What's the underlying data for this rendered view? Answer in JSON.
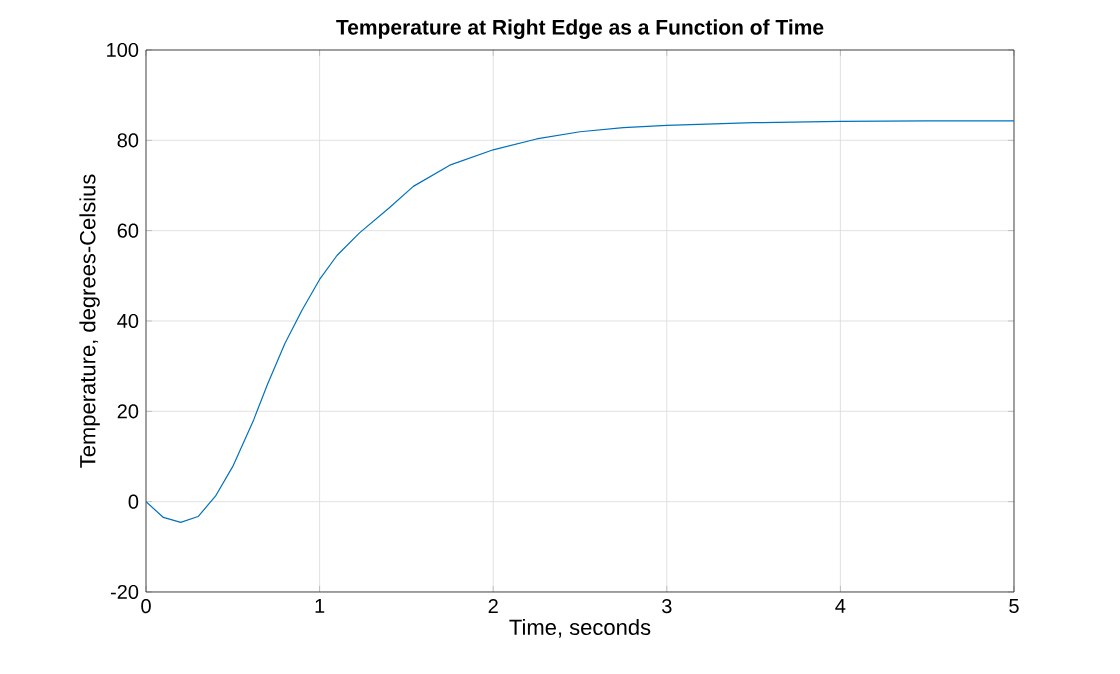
{
  "chart_data": {
    "type": "line",
    "title": "Temperature at Right Edge as a Function of Time",
    "xlabel": "Time, seconds",
    "ylabel": "Temperature, degrees-Celsius",
    "xlim": [
      0,
      5
    ],
    "ylim": [
      -20,
      100
    ],
    "xticks": [
      0,
      1,
      2,
      3,
      4,
      5
    ],
    "yticks": [
      -20,
      0,
      20,
      40,
      60,
      80,
      100
    ],
    "grid": true,
    "series": [
      {
        "color": "#0072bd",
        "x": [
          0,
          0.1,
          0.2,
          0.3,
          0.4,
          0.5,
          0.62,
          0.7,
          0.8,
          0.9,
          1.0,
          1.1,
          1.23,
          1.4,
          1.54,
          1.75,
          2.0,
          2.25,
          2.5,
          2.75,
          3.0,
          3.5,
          4.0,
          4.5,
          5.0
        ],
        "values": [
          0,
          -3.5,
          -4.6,
          -3.3,
          1.2,
          7.8,
          18.1,
          26,
          35,
          42.5,
          49.2,
          54.5,
          59.5,
          65,
          69.8,
          74.5,
          77.9,
          80.3,
          81.9,
          82.8,
          83.3,
          83.9,
          84.2,
          84.3,
          84.3
        ]
      }
    ]
  }
}
